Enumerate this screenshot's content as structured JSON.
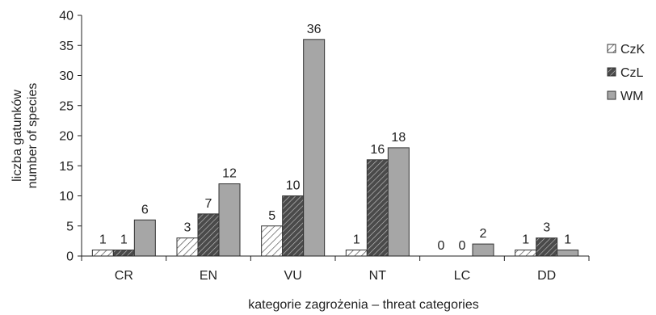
{
  "chart_data": {
    "type": "bar",
    "categories": [
      "CR",
      "EN",
      "VU",
      "NT",
      "LC",
      "DD"
    ],
    "series": [
      {
        "name": "CzK",
        "values": [
          1,
          3,
          5,
          1,
          0,
          1
        ],
        "fill": "hatch-light"
      },
      {
        "name": "CzL",
        "values": [
          1,
          7,
          10,
          16,
          0,
          3
        ],
        "fill": "hatch-dark"
      },
      {
        "name": "WM",
        "values": [
          6,
          12,
          36,
          18,
          2,
          1
        ],
        "fill": "#a6a6a6"
      }
    ],
    "ylim": [
      0,
      40
    ],
    "yticks": [
      0,
      5,
      10,
      15,
      20,
      25,
      30,
      35,
      40
    ],
    "xlabel": "kategorie zagrożenia – threat categories",
    "ylabel_lines": [
      "liczba gatunków",
      "number of species"
    ],
    "legend_position": "right",
    "grid": false,
    "colors": {
      "axis": "#222222",
      "bar_stroke": "#333333",
      "wm_fill": "#a6a6a6",
      "dark_hatch_bg": "#555555",
      "light_hatch_bg": "#ffffff"
    }
  }
}
